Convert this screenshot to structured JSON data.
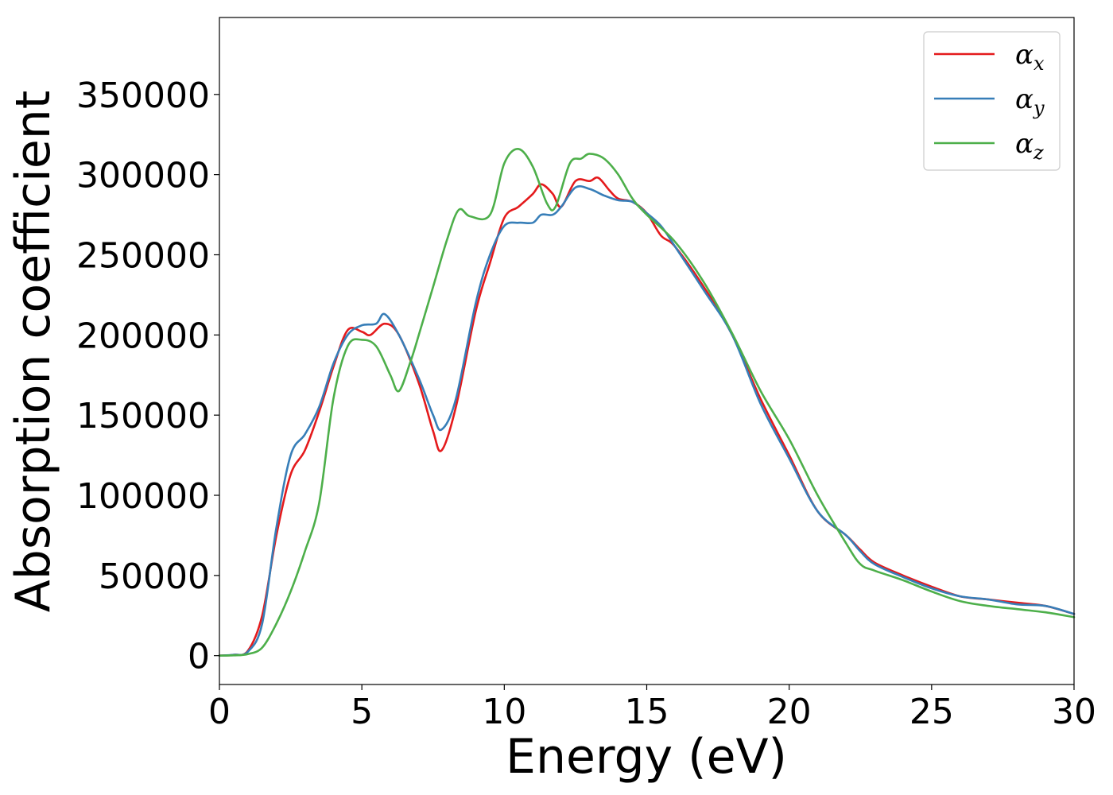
{
  "chart_data": {
    "type": "line",
    "xlabel": "Energy (eV)",
    "ylabel": "Absorption coefficient",
    "xlim": [
      0,
      30
    ],
    "ylim": [
      -18000,
      398000
    ],
    "xticks": [
      0,
      5,
      10,
      15,
      20,
      25,
      30
    ],
    "yticks": [
      0,
      50000,
      100000,
      150000,
      200000,
      250000,
      300000,
      350000
    ],
    "grid": false,
    "legend_position": "top-right",
    "series": [
      {
        "name": "α_x",
        "label_base": "α",
        "label_sub": "x",
        "color": "#e41a1c",
        "x": [
          0,
          0.5,
          1.0,
          1.5,
          2.0,
          2.5,
          3.0,
          3.5,
          4.0,
          4.5,
          5.0,
          5.3,
          5.8,
          6.3,
          7.0,
          7.5,
          7.8,
          8.3,
          9.0,
          9.5,
          10.0,
          10.5,
          11.0,
          11.3,
          11.7,
          12.0,
          12.5,
          13.0,
          13.3,
          13.7,
          14.0,
          14.5,
          15.0,
          15.5,
          16.0,
          17.0,
          18.0,
          19.0,
          20.0,
          21.0,
          22.0,
          22.5,
          23.0,
          24.0,
          25.0,
          26.0,
          27.0,
          28.0,
          29.0,
          30.0
        ],
        "values": [
          0,
          500,
          3000,
          25000,
          75000,
          113000,
          128000,
          152000,
          180000,
          203000,
          202000,
          200000,
          207000,
          200000,
          170000,
          140000,
          128000,
          155000,
          215000,
          245000,
          273000,
          280000,
          288000,
          294000,
          288000,
          280000,
          296000,
          296000,
          298000,
          290000,
          285000,
          283000,
          276000,
          262000,
          255000,
          230000,
          200000,
          160000,
          125000,
          90000,
          75000,
          66000,
          58000,
          50000,
          43000,
          37000,
          35000,
          33000,
          31000,
          26000
        ]
      },
      {
        "name": "α_y",
        "label_base": "α",
        "label_sub": "y",
        "color": "#377eb8",
        "x": [
          0,
          0.5,
          1.0,
          1.5,
          2.0,
          2.5,
          3.0,
          3.5,
          4.0,
          4.5,
          5.0,
          5.5,
          5.8,
          6.3,
          7.0,
          7.5,
          7.8,
          8.3,
          9.0,
          9.5,
          10.0,
          10.5,
          11.0,
          11.3,
          11.7,
          12.0,
          12.5,
          13.0,
          13.5,
          14.0,
          14.5,
          15.0,
          15.5,
          16.0,
          17.0,
          18.0,
          19.0,
          20.0,
          21.0,
          22.0,
          22.5,
          23.0,
          24.0,
          25.0,
          26.0,
          27.0,
          28.0,
          29.0,
          30.0
        ],
        "values": [
          0,
          500,
          2500,
          20000,
          80000,
          125000,
          138000,
          155000,
          182000,
          200000,
          206000,
          207000,
          213000,
          200000,
          173000,
          150000,
          141000,
          160000,
          220000,
          250000,
          268000,
          270000,
          270000,
          275000,
          275000,
          280000,
          292000,
          291000,
          287000,
          284000,
          283000,
          276000,
          268000,
          255000,
          228000,
          200000,
          157000,
          123000,
          90000,
          75000,
          65000,
          57000,
          49000,
          42000,
          37000,
          35000,
          32000,
          31000,
          26000
        ]
      },
      {
        "name": "α_z",
        "label_base": "α",
        "label_sub": "z",
        "color": "#4daf4a",
        "x": [
          0,
          0.5,
          1.0,
          1.5,
          2.0,
          2.5,
          3.0,
          3.5,
          4.0,
          4.5,
          5.0,
          5.5,
          6.0,
          6.3,
          6.7,
          7.0,
          7.5,
          8.0,
          8.4,
          8.8,
          9.5,
          10.0,
          10.5,
          11.0,
          11.5,
          11.8,
          12.3,
          12.7,
          13.0,
          13.5,
          14.0,
          14.5,
          15.0,
          16.0,
          17.0,
          18.0,
          19.0,
          20.0,
          21.0,
          22.0,
          22.5,
          23.0,
          24.0,
          25.0,
          26.0,
          27.0,
          28.0,
          29.0,
          30.0
        ],
        "values": [
          0,
          200,
          1000,
          5000,
          20000,
          40000,
          65000,
          95000,
          160000,
          193000,
          197000,
          193000,
          175000,
          165000,
          183000,
          200000,
          230000,
          260000,
          278000,
          274000,
          275000,
          307000,
          316000,
          305000,
          282000,
          280000,
          307000,
          310000,
          313000,
          310000,
          300000,
          285000,
          275000,
          258000,
          233000,
          201000,
          165000,
          135000,
          100000,
          70000,
          57000,
          53000,
          47000,
          40000,
          34000,
          31000,
          29000,
          27000,
          24000
        ]
      }
    ]
  }
}
